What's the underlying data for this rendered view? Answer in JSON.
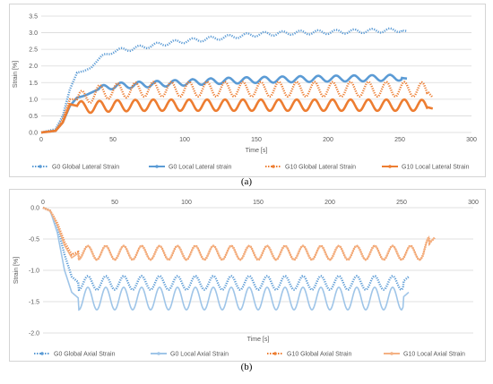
{
  "chart_data": [
    {
      "type": "line",
      "panel_label": "(a)",
      "xlabel": "Time [s]",
      "ylabel": "Strain [%]",
      "xlim": [
        0,
        300
      ],
      "ylim": [
        0,
        3.5
      ],
      "x_ticks": [
        0,
        50,
        100,
        150,
        200,
        250,
        300
      ],
      "y_ticks": [
        0.0,
        0.5,
        1.0,
        1.5,
        2.0,
        2.5,
        3.0,
        3.5
      ],
      "y_tick_labels": [
        "0.0",
        "0.5",
        "1.0",
        "1.5",
        "2.0",
        "2.5",
        "3.0",
        "3.5"
      ],
      "grid": "horizontal",
      "legend": "bottom",
      "series": [
        {
          "name": "G0 Global Lateral Strain",
          "color": "#5b9bd5",
          "style": "dotted-markers",
          "x": [
            0,
            10,
            15,
            20,
            25,
            30,
            35,
            40,
            50,
            60,
            75,
            90,
            100,
            125,
            150,
            175,
            200,
            225,
            250,
            255
          ],
          "y": [
            0,
            0.1,
            0.5,
            1.3,
            1.8,
            1.85,
            1.95,
            2.2,
            2.45,
            2.5,
            2.6,
            2.7,
            2.75,
            2.85,
            2.95,
            3.0,
            3.02,
            3.05,
            3.08,
            3.05
          ]
        },
        {
          "name": "G0 Local Lateral strain",
          "color": "#5b9bd5",
          "style": "solid",
          "x": [
            0,
            10,
            15,
            20,
            25,
            30,
            35,
            40,
            50,
            75,
            100,
            125,
            150,
            175,
            200,
            225,
            250,
            255
          ],
          "y": [
            0,
            0.05,
            0.3,
            0.8,
            1.05,
            1.1,
            1.2,
            1.3,
            1.4,
            1.45,
            1.5,
            1.55,
            1.58,
            1.6,
            1.62,
            1.63,
            1.65,
            1.62
          ]
        },
        {
          "name": "G10 Global Lateral Strain",
          "color": "#ed7d31",
          "style": "dotted-markers",
          "x": [
            0,
            10,
            15,
            20,
            25,
            30,
            40,
            50,
            75,
            100,
            125,
            150,
            175,
            200,
            225,
            250,
            265,
            270,
            273
          ],
          "y": [
            0,
            0.05,
            0.4,
            1.0,
            1.0,
            1.05,
            1.2,
            1.25,
            1.3,
            1.3,
            1.3,
            1.3,
            1.3,
            1.3,
            1.3,
            1.3,
            1.3,
            1.2,
            1.05
          ]
        },
        {
          "name": "G10 Local Lateral Strain",
          "color": "#ed7d31",
          "style": "solid",
          "x": [
            0,
            10,
            15,
            20,
            25,
            30,
            40,
            50,
            75,
            100,
            125,
            150,
            175,
            200,
            225,
            250,
            265,
            270,
            273
          ],
          "y": [
            0,
            0.05,
            0.3,
            0.85,
            0.8,
            0.75,
            0.78,
            0.8,
            0.82,
            0.82,
            0.82,
            0.82,
            0.82,
            0.82,
            0.82,
            0.82,
            0.82,
            0.75,
            0.72
          ]
        }
      ]
    },
    {
      "type": "line",
      "panel_label": "(b)",
      "xlabel": "Time [s]",
      "ylabel": "Strain [%]",
      "xlim": [
        0,
        300
      ],
      "ylim": [
        -2.0,
        0.0
      ],
      "x_ticks": [
        0,
        50,
        100,
        150,
        200,
        250,
        300
      ],
      "y_ticks": [
        0.0,
        -0.5,
        -1.0,
        -1.5,
        -2.0
      ],
      "y_tick_labels": [
        "0.0",
        "-0.5",
        "-1.0",
        "-1.5",
        "-2.0"
      ],
      "grid": "horizontal",
      "legend": "bottom",
      "series": [
        {
          "name": "G0 Global Axial Strain",
          "color": "#5b9bd5",
          "style": "dotted-markers",
          "x": [
            0,
            5,
            10,
            15,
            20,
            25,
            30,
            40,
            50,
            75,
            100,
            125,
            150,
            175,
            200,
            225,
            250,
            255
          ],
          "y": [
            0,
            -0.05,
            -0.3,
            -0.75,
            -1.1,
            -1.2,
            -1.2,
            -1.2,
            -1.2,
            -1.2,
            -1.2,
            -1.2,
            -1.2,
            -1.2,
            -1.2,
            -1.2,
            -1.2,
            -1.1
          ]
        },
        {
          "name": "G0 Local Axial Strain",
          "color": "#9fc5e8",
          "style": "solid",
          "x": [
            0,
            5,
            10,
            15,
            20,
            25,
            30,
            40,
            50,
            75,
            100,
            125,
            150,
            175,
            200,
            225,
            250,
            255
          ],
          "y": [
            0,
            -0.05,
            -0.4,
            -1.0,
            -1.35,
            -1.45,
            -1.45,
            -1.45,
            -1.45,
            -1.45,
            -1.45,
            -1.45,
            -1.45,
            -1.45,
            -1.45,
            -1.45,
            -1.45,
            -1.35
          ]
        },
        {
          "name": "G10 Global Axial Strain",
          "color": "#ed7d31",
          "style": "dotted-markers",
          "x": [
            0,
            5,
            10,
            15,
            20,
            25,
            30,
            40,
            50,
            75,
            100,
            125,
            150,
            175,
            200,
            225,
            250,
            265,
            270,
            273
          ],
          "y": [
            0,
            -0.05,
            -0.25,
            -0.55,
            -0.75,
            -0.7,
            -0.72,
            -0.72,
            -0.72,
            -0.72,
            -0.72,
            -0.72,
            -0.72,
            -0.72,
            -0.72,
            -0.72,
            -0.72,
            -0.72,
            -0.55,
            -0.48
          ]
        },
        {
          "name": "G10 Local Axial Strain",
          "color": "#f4b183",
          "style": "solid",
          "x": [
            0,
            5,
            10,
            15,
            20,
            25,
            30,
            40,
            50,
            75,
            100,
            125,
            150,
            175,
            200,
            225,
            250,
            265,
            270,
            273
          ],
          "y": [
            0,
            -0.05,
            -0.28,
            -0.6,
            -0.8,
            -0.72,
            -0.72,
            -0.72,
            -0.72,
            -0.72,
            -0.72,
            -0.72,
            -0.72,
            -0.72,
            -0.72,
            -0.72,
            -0.72,
            -0.72,
            -0.55,
            -0.48
          ]
        }
      ],
      "oscillation": {
        "period_s": 12.5,
        "amplitude_g0_global": 0.3,
        "amplitude_g0_local": 0.4,
        "amplitude_g10": 0.2
      }
    }
  ]
}
